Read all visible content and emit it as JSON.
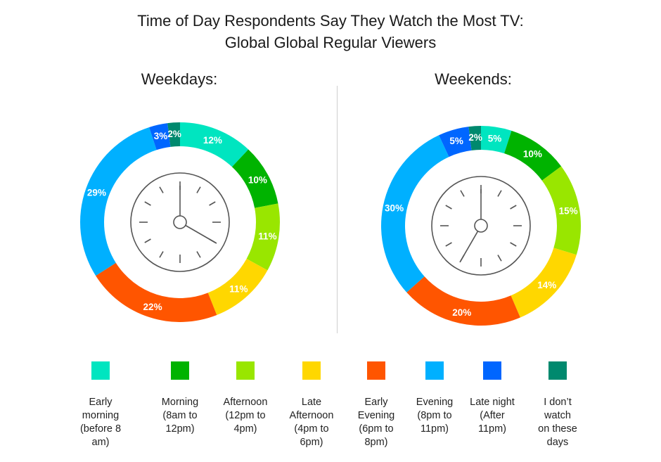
{
  "title": {
    "line1": "Time of Day Respondents Say They Watch the Most TV:",
    "line2": "Global Global Regular Viewers"
  },
  "chart_data": [
    {
      "type": "pie",
      "title": "Weekdays:",
      "categories": [
        "Early morning (before 8 am)",
        "Morning (8am to 12pm)",
        "Afternoon (12pm to 4pm)",
        "Late Afternoon (4pm to 6pm)",
        "Early Evening (6pm to 8pm)",
        "Evening (8pm to 11pm)",
        "Late night (After 11pm)",
        "I don’t watch on these days"
      ],
      "values": [
        12,
        10,
        11,
        11,
        22,
        29,
        3,
        2
      ],
      "labels": [
        "12%",
        "10%",
        "11%",
        "11%",
        "22%",
        "29%",
        "3%",
        "2%"
      ],
      "clock": {
        "hour": 4,
        "minute": 0
      }
    },
    {
      "type": "pie",
      "title": "Weekends:",
      "categories": [
        "Early morning (before 8 am)",
        "Morning (8am to 12pm)",
        "Afternoon (12pm to 4pm)",
        "Late Afternoon (4pm to 6pm)",
        "Early Evening (6pm to 8pm)",
        "Evening (8pm to 11pm)",
        "Late night (After 11pm)",
        "I don’t watch on these days"
      ],
      "values": [
        5,
        10,
        15,
        14,
        20,
        30,
        5,
        2
      ],
      "labels": [
        "5%",
        "10%",
        "15%",
        "14%",
        "20%",
        "30%",
        "5%",
        "2%"
      ],
      "clock": {
        "hour": 7,
        "minute": 0
      }
    }
  ],
  "colors": [
    "#00e5c0",
    "#00b300",
    "#99e600",
    "#ffd700",
    "#ff5500",
    "#00b0ff",
    "#0066ff",
    "#00896e"
  ],
  "legend": [
    {
      "label": "Early morning (before 8 am)",
      "lines": [
        "Early",
        "morning",
        "(before 8",
        "am)"
      ],
      "color": "#00e5c0"
    },
    {
      "label": "Morning (8am to 12pm)",
      "lines": [
        "Morning",
        "(8am to",
        "12pm)"
      ],
      "color": "#00b300"
    },
    {
      "label": "Afternoon (12pm to 4pm)",
      "lines": [
        "Afternoon",
        "(12pm to",
        "4pm)"
      ],
      "color": "#99e600"
    },
    {
      "label": "Late Afternoon (4pm to 6pm)",
      "lines": [
        "Late",
        "Afternoon",
        "(4pm to",
        "6pm)"
      ],
      "color": "#ffd700"
    },
    {
      "label": "Early Evening (6pm to 8pm)",
      "lines": [
        "Early",
        "Evening",
        "(6pm to",
        "8pm)"
      ],
      "color": "#ff5500"
    },
    {
      "label": "Evening (8pm to 11pm)",
      "lines": [
        "Evening",
        "(8pm to",
        "11pm)"
      ],
      "color": "#00b0ff"
    },
    {
      "label": "Late night (After 11pm)",
      "lines": [
        "Late night",
        "(After",
        "11pm)"
      ],
      "color": "#0066ff"
    },
    {
      "label": "I don’t watch on these days",
      "lines": [
        "I don’t",
        "watch",
        "on these",
        "days"
      ],
      "color": "#00896e"
    }
  ]
}
